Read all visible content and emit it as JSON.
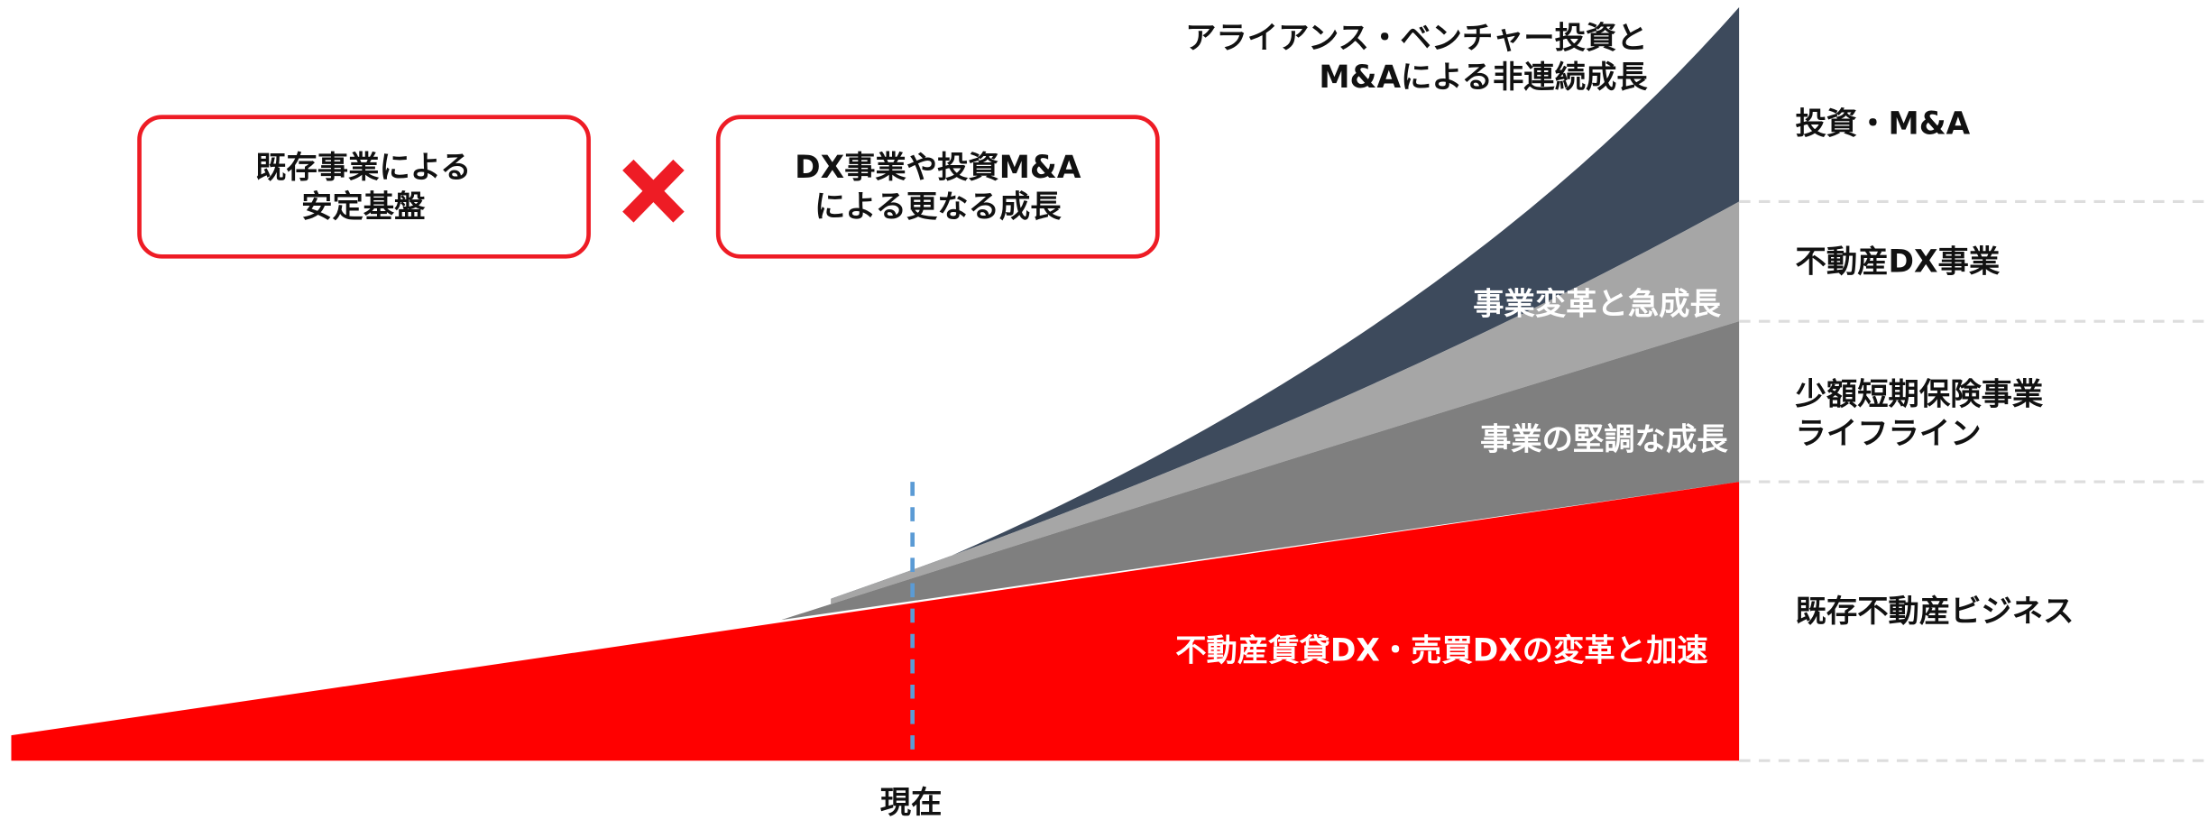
{
  "boxes": [
    {
      "lines": [
        "既存事業による",
        "安定基盤"
      ]
    },
    {
      "lines": [
        "DX事業や投資M&A",
        "による更なる成長"
      ]
    }
  ],
  "layer_labels": {
    "investment": [
      "アライアンス・ベンチャー投資と",
      "M&Aによる非連続成長"
    ],
    "transform": "事業変革と急成長",
    "steady": "事業の堅調な成長",
    "core": "不動産賃貸DX・売買DXの変革と加速"
  },
  "segments": [
    [
      "投資・M&A"
    ],
    [
      "不動産DX事業"
    ],
    [
      "少額短期保険事業",
      "ライフライン"
    ],
    [
      "既存不動産ビジネス"
    ]
  ],
  "now_label": "現在"
}
